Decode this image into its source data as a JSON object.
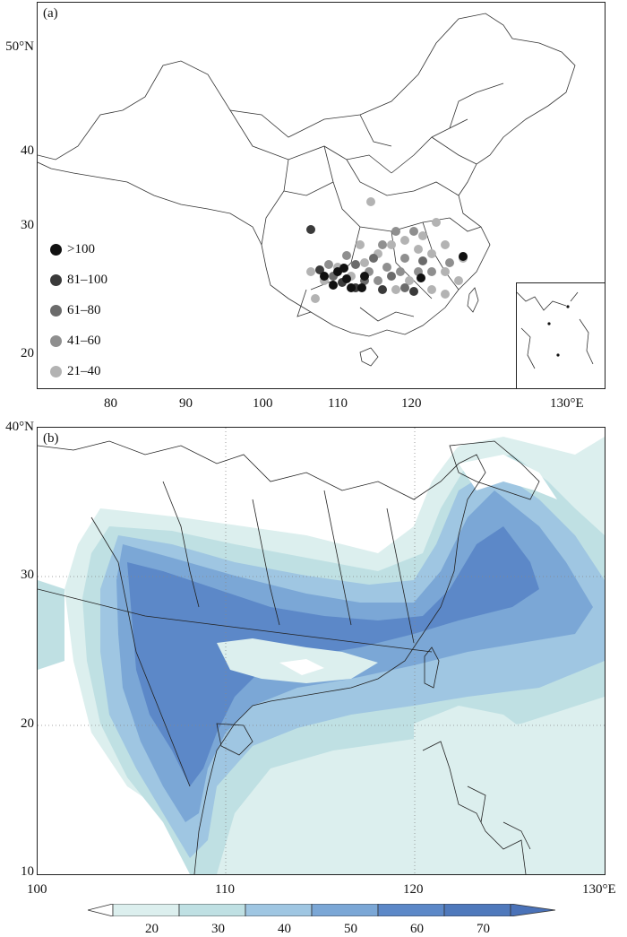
{
  "figure": {
    "panel_a": {
      "label": "(a)",
      "y_ticks": [
        "50°N",
        "40",
        "30",
        "20"
      ],
      "x_ticks": [
        "80",
        "90",
        "100",
        "110",
        "120",
        "130°E"
      ],
      "legend": [
        {
          "label": ">100",
          "color": "#111111"
        },
        {
          "label": "81–100",
          "color": "#3a3a3a"
        },
        {
          "label": "61–80",
          "color": "#6b6b6b"
        },
        {
          "label": "41–60",
          "color": "#8f8f8f"
        },
        {
          "label": "21–40",
          "color": "#b3b3b3"
        }
      ]
    },
    "panel_b": {
      "label": "(b)",
      "y_ticks": [
        "40°N",
        "30",
        "20",
        "10"
      ],
      "x_ticks": [
        "100",
        "110",
        "120",
        "130°E"
      ]
    },
    "colorbar": {
      "levels": [
        "20",
        "30",
        "40",
        "50",
        "60",
        "70"
      ],
      "colors": [
        "#ffffff",
        "#dcefee",
        "#bfe0e3",
        "#9fc6e2",
        "#7ba7d6",
        "#5c88c8",
        "#4a72b8"
      ]
    }
  }
}
